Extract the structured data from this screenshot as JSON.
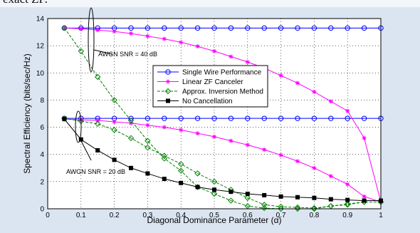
{
  "page_top_text": "exact ZF.",
  "chart_data": {
    "type": "line",
    "xlabel": "Diagonal Dominance Parameter (α)",
    "ylabel": "Spectral Efficiency (bits/sec/Hz)",
    "xlim": [
      0,
      1
    ],
    "ylim": [
      0,
      14
    ],
    "xticks": [
      0,
      0.1,
      0.2,
      0.3,
      0.4,
      0.5,
      0.6,
      0.7,
      0.8,
      0.9,
      1
    ],
    "yticks": [
      0,
      2,
      4,
      6,
      8,
      10,
      12,
      14
    ],
    "grid": true,
    "legend_position": "center-right",
    "x": [
      0.05,
      0.1,
      0.15,
      0.2,
      0.25,
      0.3,
      0.35,
      0.4,
      0.45,
      0.5,
      0.55,
      0.6,
      0.65,
      0.7,
      0.75,
      0.8,
      0.85,
      0.9,
      0.95,
      1.0
    ],
    "series": [
      {
        "name": "Single Wire Performance",
        "color": "#0000ff",
        "marker": "circle",
        "dash": "solid",
        "groups": [
          [
            13.3,
            13.3,
            13.3,
            13.3,
            13.3,
            13.3,
            13.3,
            13.3,
            13.3,
            13.3,
            13.3,
            13.3,
            13.3,
            13.3,
            13.3,
            13.3,
            13.3,
            13.3,
            13.3,
            13.3
          ],
          [
            6.65,
            6.65,
            6.65,
            6.65,
            6.65,
            6.65,
            6.65,
            6.65,
            6.65,
            6.65,
            6.65,
            6.65,
            6.65,
            6.65,
            6.65,
            6.65,
            6.65,
            6.65,
            6.65,
            6.65
          ]
        ]
      },
      {
        "name": "Linear ZF Canceler",
        "color": "#ff00ff",
        "marker": "star",
        "dash": "solid",
        "groups": [
          [
            13.3,
            13.25,
            13.15,
            13.05,
            12.9,
            12.7,
            12.5,
            12.25,
            11.95,
            11.6,
            11.2,
            10.8,
            10.35,
            9.8,
            9.25,
            8.6,
            7.9,
            7.2,
            5.2,
            0.5
          ],
          [
            6.6,
            6.55,
            6.5,
            6.4,
            6.3,
            6.15,
            6.0,
            5.8,
            5.55,
            5.3,
            5.0,
            4.7,
            4.35,
            3.95,
            3.5,
            3.0,
            2.4,
            1.8,
            0.9,
            0.5
          ]
        ]
      },
      {
        "name": "Approx. Inversion Method",
        "color": "#008000",
        "marker": "diamond",
        "dash": "dashed",
        "groups": [
          [
            13.3,
            11.6,
            9.7,
            8.0,
            6.5,
            5.0,
            3.7,
            2.8,
            1.6,
            1.1,
            0.6,
            0.2,
            0.05,
            0.0,
            0.0,
            0.0,
            0.2,
            0.3,
            0.5,
            0.5
          ],
          [
            6.65,
            6.45,
            6.25,
            5.8,
            5.2,
            4.5,
            3.9,
            3.3,
            2.6,
            2.0,
            1.4,
            0.8,
            0.3,
            0.15,
            0.1,
            0.05,
            0.2,
            0.35,
            0.5,
            0.5
          ]
        ]
      },
      {
        "name": "No Cancellation",
        "color": "#000000",
        "marker": "square",
        "dash": "solid",
        "groups": [
          [
            6.6,
            5.1,
            4.3,
            3.6,
            3.0,
            2.6,
            2.2,
            1.9,
            1.6,
            1.4,
            1.25,
            1.1,
            1.0,
            0.9,
            0.85,
            0.8,
            0.7,
            0.65,
            0.6,
            0.6
          ]
        ]
      }
    ],
    "annotations": [
      {
        "text": "AWGN SNR = 40 dB"
      },
      {
        "text": "AWGN SNR = 20 dB"
      }
    ]
  }
}
